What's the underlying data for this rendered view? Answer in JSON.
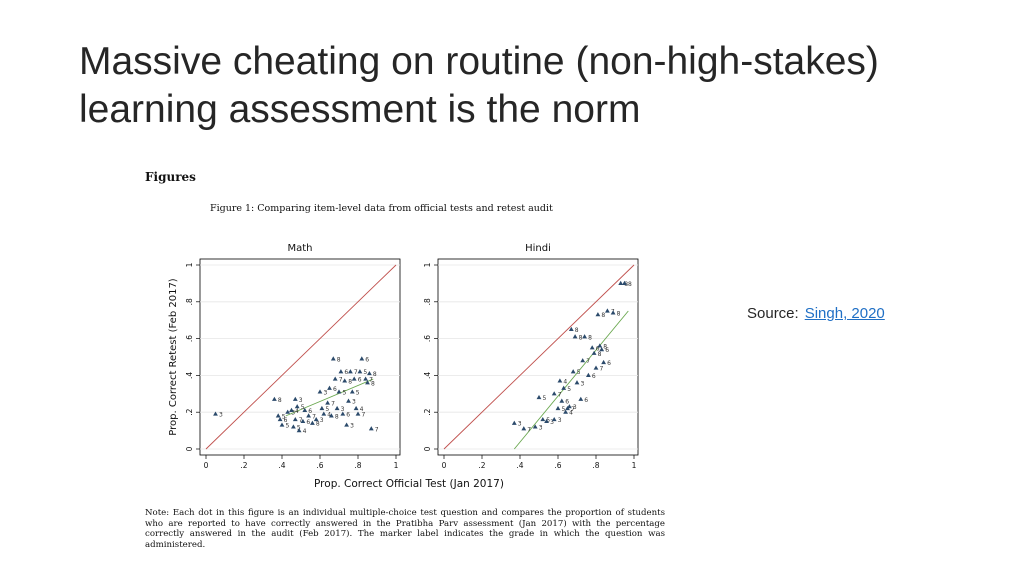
{
  "slide": {
    "title": "Massive cheating on routine (non-high-stakes) learning assessment is the norm",
    "source_label": "Source:",
    "source_link": "Singh, 2020"
  },
  "figure": {
    "heading": "Figures",
    "caption": "Figure 1: Comparing item-level data from official tests and retest audit",
    "note": "Note: Each dot in this figure is an individual multiple-choice test question and compares the proportion of students who are reported to have correctly answered in the Pratibha Parv assessment (Jan 2017) with the percentage correctly answered in the audit (Feb 2017). The marker label indicates the grade in which the question was administered.",
    "marker_color": "#2b4a6b",
    "diagonal_color": "#c0504d",
    "fit_color": "#6aa84f"
  },
  "chart_data": [
    {
      "type": "scatter",
      "title": "Math",
      "xlabel": "Prop. Correct Official Test (Jan 2017)",
      "ylabel": "Prop. Correct Retest (Feb 2017)",
      "xlim": [
        0,
        1
      ],
      "ylim": [
        0,
        1
      ],
      "xticks": [
        "0",
        ".2",
        ".4",
        ".6",
        ".8",
        "1"
      ],
      "yticks": [
        "0",
        ".2",
        ".4",
        ".6",
        ".8",
        "1"
      ],
      "grid": true,
      "reference_line": "45-degree",
      "fit_line": [
        [
          0.42,
          0.18
        ],
        [
          0.88,
          0.38
        ]
      ],
      "points": [
        {
          "x": 0.05,
          "y": 0.19,
          "label": "3"
        },
        {
          "x": 0.36,
          "y": 0.27,
          "label": "8"
        },
        {
          "x": 0.38,
          "y": 0.18,
          "label": "5"
        },
        {
          "x": 0.39,
          "y": 0.16,
          "label": "6"
        },
        {
          "x": 0.4,
          "y": 0.13,
          "label": "5"
        },
        {
          "x": 0.43,
          "y": 0.2,
          "label": "3"
        },
        {
          "x": 0.45,
          "y": 0.21,
          "label": "4"
        },
        {
          "x": 0.46,
          "y": 0.12,
          "label": "5"
        },
        {
          "x": 0.47,
          "y": 0.27,
          "label": "3"
        },
        {
          "x": 0.47,
          "y": 0.16,
          "label": "7"
        },
        {
          "x": 0.48,
          "y": 0.23,
          "label": "5"
        },
        {
          "x": 0.49,
          "y": 0.1,
          "label": "4"
        },
        {
          "x": 0.51,
          "y": 0.15,
          "label": "6"
        },
        {
          "x": 0.52,
          "y": 0.21,
          "label": "6"
        },
        {
          "x": 0.54,
          "y": 0.18,
          "label": "7"
        },
        {
          "x": 0.56,
          "y": 0.14,
          "label": "8"
        },
        {
          "x": 0.58,
          "y": 0.16,
          "label": "3"
        },
        {
          "x": 0.6,
          "y": 0.31,
          "label": "3"
        },
        {
          "x": 0.61,
          "y": 0.22,
          "label": "5"
        },
        {
          "x": 0.62,
          "y": 0.19,
          "label": "4"
        },
        {
          "x": 0.64,
          "y": 0.25,
          "label": "7"
        },
        {
          "x": 0.65,
          "y": 0.33,
          "label": "6"
        },
        {
          "x": 0.66,
          "y": 0.18,
          "label": "8"
        },
        {
          "x": 0.67,
          "y": 0.49,
          "label": "8"
        },
        {
          "x": 0.68,
          "y": 0.38,
          "label": "7"
        },
        {
          "x": 0.69,
          "y": 0.22,
          "label": "3"
        },
        {
          "x": 0.7,
          "y": 0.31,
          "label": "5"
        },
        {
          "x": 0.71,
          "y": 0.42,
          "label": "6"
        },
        {
          "x": 0.72,
          "y": 0.19,
          "label": "6"
        },
        {
          "x": 0.73,
          "y": 0.37,
          "label": "8"
        },
        {
          "x": 0.74,
          "y": 0.13,
          "label": "3"
        },
        {
          "x": 0.75,
          "y": 0.26,
          "label": "3"
        },
        {
          "x": 0.76,
          "y": 0.42,
          "label": "7"
        },
        {
          "x": 0.77,
          "y": 0.31,
          "label": "5"
        },
        {
          "x": 0.78,
          "y": 0.38,
          "label": "6"
        },
        {
          "x": 0.79,
          "y": 0.22,
          "label": "4"
        },
        {
          "x": 0.8,
          "y": 0.19,
          "label": "7"
        },
        {
          "x": 0.81,
          "y": 0.42,
          "label": "5"
        },
        {
          "x": 0.82,
          "y": 0.49,
          "label": "6"
        },
        {
          "x": 0.84,
          "y": 0.38,
          "label": "7"
        },
        {
          "x": 0.85,
          "y": 0.36,
          "label": "8"
        },
        {
          "x": 0.86,
          "y": 0.41,
          "label": "8"
        },
        {
          "x": 0.87,
          "y": 0.11,
          "label": "7"
        }
      ]
    },
    {
      "type": "scatter",
      "title": "Hindi",
      "xlabel": "",
      "ylabel": "",
      "xlim": [
        0,
        1
      ],
      "ylim": [
        0,
        1
      ],
      "xticks": [
        "0",
        ".2",
        ".4",
        ".6",
        ".8",
        "1"
      ],
      "yticks": [
        "0",
        ".2",
        ".4",
        ".6",
        ".8",
        "1"
      ],
      "grid": true,
      "reference_line": "45-degree",
      "fit_line": [
        [
          0.37,
          0.0
        ],
        [
          0.97,
          0.75
        ]
      ],
      "points": [
        {
          "x": 0.37,
          "y": 0.14,
          "label": "3"
        },
        {
          "x": 0.42,
          "y": 0.11,
          "label": "7"
        },
        {
          "x": 0.48,
          "y": 0.12,
          "label": "3"
        },
        {
          "x": 0.5,
          "y": 0.28,
          "label": "5"
        },
        {
          "x": 0.52,
          "y": 0.16,
          "label": "5"
        },
        {
          "x": 0.54,
          "y": 0.15,
          "label": "3"
        },
        {
          "x": 0.58,
          "y": 0.16,
          "label": "3"
        },
        {
          "x": 0.58,
          "y": 0.3,
          "label": "7"
        },
        {
          "x": 0.6,
          "y": 0.22,
          "label": "5"
        },
        {
          "x": 0.61,
          "y": 0.37,
          "label": "4"
        },
        {
          "x": 0.62,
          "y": 0.26,
          "label": "6"
        },
        {
          "x": 0.63,
          "y": 0.33,
          "label": "5"
        },
        {
          "x": 0.64,
          "y": 0.2,
          "label": "4"
        },
        {
          "x": 0.65,
          "y": 0.22,
          "label": "7"
        },
        {
          "x": 0.66,
          "y": 0.23,
          "label": "3"
        },
        {
          "x": 0.67,
          "y": 0.65,
          "label": "8"
        },
        {
          "x": 0.68,
          "y": 0.42,
          "label": "5"
        },
        {
          "x": 0.69,
          "y": 0.61,
          "label": "8"
        },
        {
          "x": 0.7,
          "y": 0.36,
          "label": "3"
        },
        {
          "x": 0.72,
          "y": 0.27,
          "label": "6"
        },
        {
          "x": 0.73,
          "y": 0.48,
          "label": "7"
        },
        {
          "x": 0.74,
          "y": 0.61,
          "label": "8"
        },
        {
          "x": 0.76,
          "y": 0.4,
          "label": "6"
        },
        {
          "x": 0.78,
          "y": 0.55,
          "label": "6"
        },
        {
          "x": 0.79,
          "y": 0.52,
          "label": "8"
        },
        {
          "x": 0.8,
          "y": 0.44,
          "label": "7"
        },
        {
          "x": 0.81,
          "y": 0.73,
          "label": "8"
        },
        {
          "x": 0.82,
          "y": 0.56,
          "label": "8"
        },
        {
          "x": 0.83,
          "y": 0.54,
          "label": "6"
        },
        {
          "x": 0.84,
          "y": 0.47,
          "label": "6"
        },
        {
          "x": 0.86,
          "y": 0.75,
          "label": "7"
        },
        {
          "x": 0.89,
          "y": 0.74,
          "label": "8"
        },
        {
          "x": 0.93,
          "y": 0.9,
          "label": "8"
        },
        {
          "x": 0.95,
          "y": 0.9,
          "label": "8"
        }
      ]
    }
  ]
}
